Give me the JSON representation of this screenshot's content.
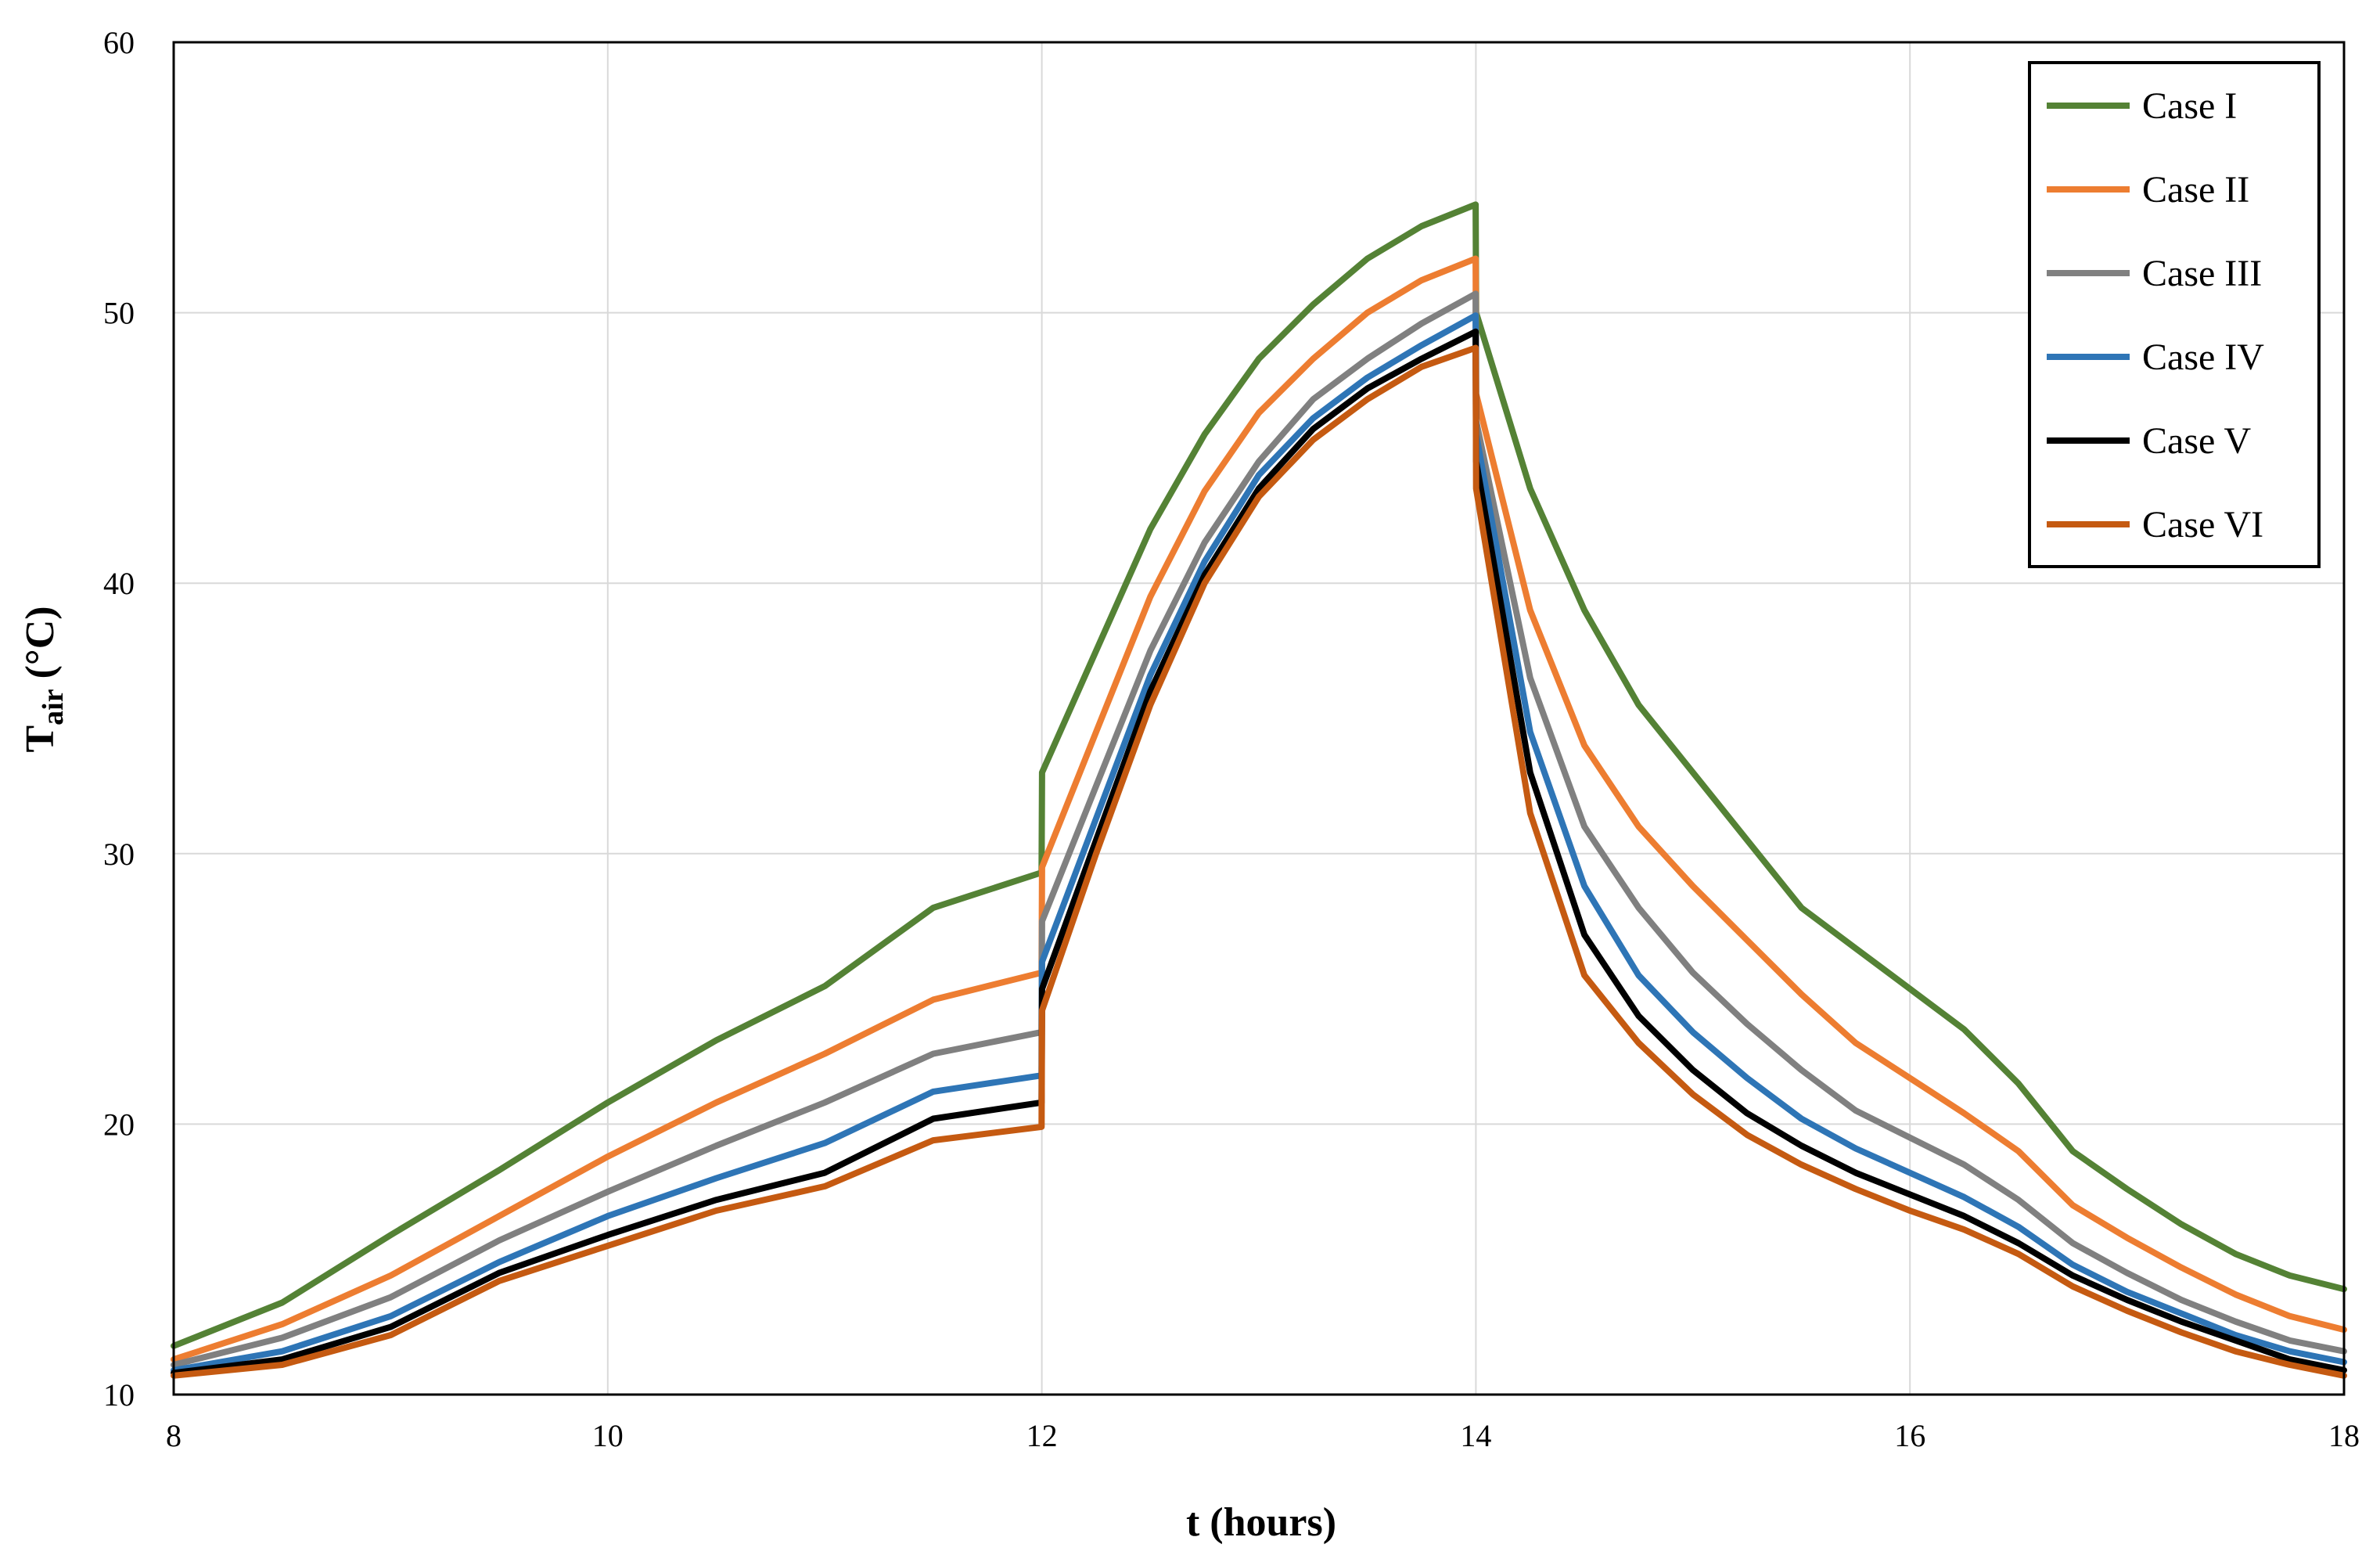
{
  "chart_data": {
    "type": "line",
    "title": "",
    "xlabel": "t (hours)",
    "ylabel_main": "T",
    "ylabel_sub": "air",
    "ylabel_unit": " (°C)",
    "xlim": [
      8,
      18
    ],
    "ylim": [
      10,
      60
    ],
    "xticks": [
      "8",
      "10",
      "12",
      "14",
      "16",
      "18"
    ],
    "yticks": [
      "10",
      "20",
      "30",
      "40",
      "50",
      "60"
    ],
    "grid": true,
    "legend_position": "top-right",
    "x": [
      8,
      8.5,
      9,
      9.5,
      10,
      10.5,
      11,
      11.5,
      11.999,
      12.001,
      12.25,
      12.5,
      12.75,
      13,
      13.25,
      13.5,
      13.75,
      13.999,
      14.001,
      14.25,
      14.5,
      14.75,
      15,
      15.25,
      15.5,
      15.75,
      16,
      16.25,
      16.5,
      16.75,
      17,
      17.25,
      17.5,
      17.75,
      18
    ],
    "series": [
      {
        "name": "Case I",
        "color": "#548235",
        "values": [
          11.8,
          13.4,
          15.9,
          18.3,
          20.8,
          23.1,
          25.1,
          28.0,
          29.3,
          33.0,
          37.5,
          42.0,
          45.5,
          48.3,
          50.3,
          52.0,
          53.2,
          54.0,
          50.0,
          43.5,
          39.0,
          35.5,
          33.0,
          30.5,
          28.0,
          26.5,
          25.0,
          23.5,
          21.5,
          19.0,
          17.6,
          16.3,
          15.2,
          14.4,
          13.9
        ]
      },
      {
        "name": "Case II",
        "color": "#ED7D31",
        "values": [
          11.3,
          12.6,
          14.4,
          16.6,
          18.8,
          20.8,
          22.6,
          24.6,
          25.6,
          29.5,
          34.5,
          39.5,
          43.4,
          46.3,
          48.3,
          50.0,
          51.2,
          52.0,
          47.0,
          39.0,
          34.0,
          31.0,
          28.8,
          26.8,
          24.8,
          23.0,
          21.7,
          20.4,
          19.0,
          17.0,
          15.8,
          14.7,
          13.7,
          12.9,
          12.4
        ]
      },
      {
        "name": "Case III",
        "color": "#808080",
        "values": [
          11.1,
          12.1,
          13.6,
          15.7,
          17.5,
          19.2,
          20.8,
          22.6,
          23.4,
          27.5,
          32.5,
          37.5,
          41.5,
          44.5,
          46.8,
          48.3,
          49.6,
          50.7,
          46.0,
          36.5,
          31.0,
          28.0,
          25.6,
          23.7,
          22.0,
          20.5,
          19.5,
          18.5,
          17.2,
          15.6,
          14.5,
          13.5,
          12.7,
          12.0,
          11.6
        ]
      },
      {
        "name": "Case IV",
        "color": "#2E75B6",
        "values": [
          10.9,
          11.6,
          12.9,
          14.9,
          16.6,
          18.0,
          19.3,
          21.2,
          21.8,
          26.0,
          31.3,
          36.6,
          40.8,
          44.0,
          46.1,
          47.6,
          48.8,
          49.9,
          45.5,
          34.5,
          28.8,
          25.5,
          23.4,
          21.7,
          20.2,
          19.1,
          18.2,
          17.3,
          16.2,
          14.8,
          13.8,
          13.0,
          12.2,
          11.6,
          11.2
        ]
      },
      {
        "name": "Case V",
        "color": "#000000",
        "values": [
          10.8,
          11.3,
          12.5,
          14.5,
          15.9,
          17.2,
          18.2,
          20.2,
          20.8,
          25.0,
          30.5,
          36.0,
          40.3,
          43.5,
          45.7,
          47.2,
          48.3,
          49.3,
          44.5,
          33.0,
          27.0,
          24.0,
          22.0,
          20.4,
          19.2,
          18.2,
          17.4,
          16.6,
          15.6,
          14.4,
          13.5,
          12.7,
          12.0,
          11.3,
          10.9
        ]
      },
      {
        "name": "Case VI",
        "color": "#C55A11",
        "values": [
          10.7,
          11.1,
          12.2,
          14.2,
          15.5,
          16.8,
          17.7,
          19.4,
          19.9,
          24.2,
          30.0,
          35.5,
          40.0,
          43.2,
          45.3,
          46.8,
          48.0,
          48.7,
          43.5,
          31.5,
          25.5,
          23.0,
          21.1,
          19.6,
          18.5,
          17.6,
          16.8,
          16.1,
          15.2,
          14.0,
          13.1,
          12.3,
          11.6,
          11.1,
          10.7
        ]
      }
    ]
  }
}
